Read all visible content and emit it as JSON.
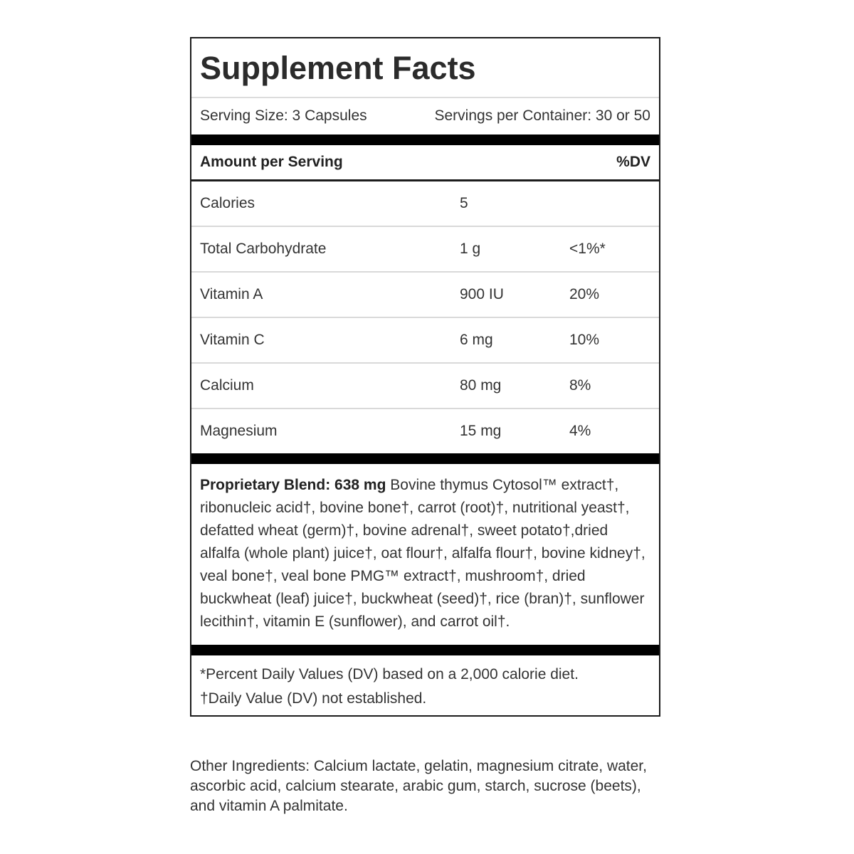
{
  "label": {
    "title": "Supplement Facts",
    "serving": {
      "size": "Serving Size: 3 Capsules",
      "per_container": "Servings per Container: 30 or 50"
    },
    "header": {
      "amount": "Amount per Serving",
      "dv": "%DV"
    },
    "nutrients": [
      {
        "name": "Calories",
        "amount": "5",
        "dv": ""
      },
      {
        "name": "Total Carbohydrate",
        "amount": "1 g",
        "dv": "<1%*"
      },
      {
        "name": "Vitamin A",
        "amount": "900 IU",
        "dv": "20%"
      },
      {
        "name": "Vitamin C",
        "amount": "6 mg",
        "dv": "10%"
      },
      {
        "name": "Calcium",
        "amount": "80 mg",
        "dv": "8%"
      },
      {
        "name": "Magnesium",
        "amount": "15 mg",
        "dv": "4%"
      }
    ],
    "proprietary_blend": {
      "bold": "Proprietary Blend: 638 mg",
      "text": " Bovine thymus Cytosol™ extract†, ribonucleic acid†, bovine bone†, carrot (root)†, nutritional yeast†, defatted wheat (germ)†, bovine adrenal†, sweet potato†,dried alfalfa (whole plant) juice†, oat flour†, alfalfa flour†, bovine kidney†, veal bone†, veal bone PMG™ extract†, mushroom†, dried buckwheat (leaf) juice†, buckwheat (seed)†, rice (bran)†, sunflower lecithin†, vitamin E (sunflower), and carrot oil†."
    },
    "footnotes": [
      "*Percent Daily Values (DV) based on a 2,000 calorie diet.",
      "†Daily Value (DV) not established."
    ],
    "other_ingredients": "Other Ingredients: Calcium lactate, gelatin, magnesium citrate, water, ascorbic acid, calcium stearate, arabic gum, starch, sucrose (beets), and vitamin A palmitate."
  },
  "colors": {
    "text": "#333333",
    "title_text": "#2b2b2b",
    "panel_border": "#1c1c1c",
    "thick_divider": "#000000",
    "thin_divider": "#d9d9d9",
    "title_underline": "#dcdcdc",
    "background": "#ffffff"
  }
}
